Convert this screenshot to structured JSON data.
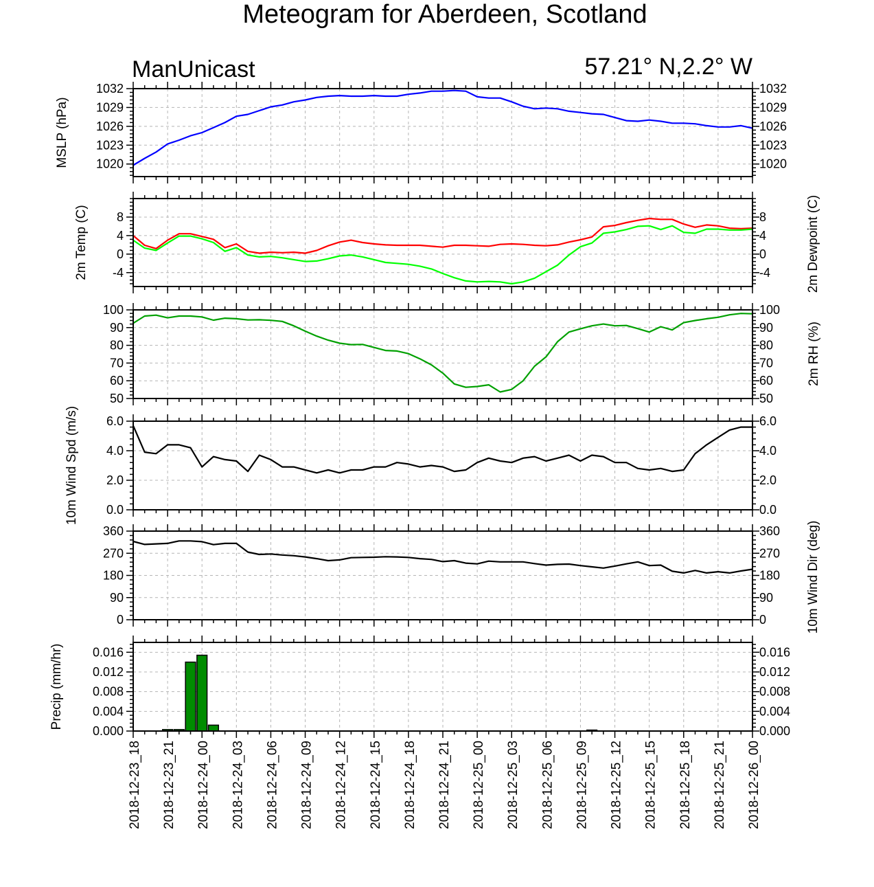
{
  "title": "Meteogram for Aberdeen, Scotland",
  "model_label": "ManUnicast",
  "location_label": "57.21° N,2.2° W",
  "x_tick_labels": [
    "2018-12-23_18",
    "2018-12-23_21",
    "2018-12-24_00",
    "2018-12-24_03",
    "2018-12-24_06",
    "2018-12-24_09",
    "2018-12-24_12",
    "2018-12-24_15",
    "2018-12-24_18",
    "2018-12-24_21",
    "2018-12-25_00",
    "2018-12-25_03",
    "2018-12-25_06",
    "2018-12-25_09",
    "2018-12-25_12",
    "2018-12-25_15",
    "2018-12-25_18",
    "2018-12-25_21",
    "2018-12-26_00"
  ],
  "colors": {
    "mslp": "#0000ff",
    "temp": "#ff0000",
    "dewpoint": "#00ff00",
    "rh": "#00a000",
    "wind": "#000000",
    "precip_fill": "#008c00",
    "grid": "#b4b4b4"
  },
  "chart_data": [
    {
      "type": "line",
      "x_unit": "hours since 2018-12-23_18",
      "ylabel": "MSLP (hPa)",
      "right_labels": true,
      "ylim": [
        1018,
        1032
      ],
      "yticks": [
        1020,
        1023,
        1026,
        1029,
        1032
      ],
      "series": [
        {
          "color_key": "mslp",
          "x": [
            0,
            1,
            2,
            3,
            4,
            5,
            6,
            7,
            8,
            9,
            10,
            11,
            12,
            13,
            14,
            15,
            16,
            17,
            18,
            19,
            20,
            21,
            22,
            23,
            24,
            25,
            26,
            27,
            28,
            29,
            30,
            31,
            32,
            33,
            34,
            35,
            36,
            37,
            38,
            39,
            40,
            41,
            42,
            43,
            44,
            45,
            46,
            47,
            48,
            49,
            50,
            51,
            52,
            53,
            54
          ],
          "values": [
            1019.8,
            1020.9,
            1021.9,
            1023.2,
            1023.8,
            1024.5,
            1025.0,
            1025.8,
            1026.6,
            1027.6,
            1027.9,
            1028.5,
            1029.1,
            1029.4,
            1029.9,
            1030.2,
            1030.6,
            1030.8,
            1030.9,
            1030.8,
            1030.8,
            1030.9,
            1030.8,
            1030.8,
            1031.1,
            1031.3,
            1031.6,
            1031.6,
            1031.7,
            1031.6,
            1030.7,
            1030.5,
            1030.5,
            1029.9,
            1029.2,
            1028.8,
            1028.9,
            1028.8,
            1028.4,
            1028.2,
            1028.0,
            1027.9,
            1027.4,
            1026.9,
            1026.8,
            1027.0,
            1026.8,
            1026.5,
            1026.5,
            1026.4,
            1026.1,
            1025.9,
            1025.9,
            1026.1,
            1025.7
          ]
        }
      ]
    },
    {
      "type": "line",
      "x_unit": "hours since 2018-12-23_18",
      "ylabel": "2m Temp (C)",
      "ylabel_right": "2m Dewpoint (C)",
      "right_labels": false,
      "ylim": [
        -7,
        12
      ],
      "yticks": [
        -4,
        0,
        4,
        8
      ],
      "series": [
        {
          "color_key": "temp",
          "x": [
            0,
            1,
            2,
            3,
            4,
            5,
            6,
            7,
            8,
            9,
            10,
            11,
            12,
            13,
            14,
            15,
            16,
            17,
            18,
            19,
            20,
            21,
            22,
            23,
            24,
            25,
            26,
            27,
            28,
            29,
            30,
            31,
            32,
            33,
            34,
            35,
            36,
            37,
            38,
            39,
            40,
            41,
            42,
            43,
            44,
            45,
            46,
            47,
            48,
            49,
            50,
            51,
            52,
            53,
            54
          ],
          "values": [
            4.0,
            1.9,
            1.2,
            3.0,
            4.4,
            4.4,
            3.8,
            3.2,
            1.4,
            2.2,
            0.6,
            0.2,
            0.4,
            0.3,
            0.4,
            0.2,
            0.8,
            1.8,
            2.6,
            3.0,
            2.5,
            2.2,
            2.0,
            1.9,
            1.9,
            1.9,
            1.7,
            1.5,
            1.9,
            1.9,
            1.8,
            1.7,
            2.1,
            2.2,
            2.1,
            1.9,
            1.8,
            2.0,
            2.6,
            3.1,
            3.7,
            5.9,
            6.2,
            6.8,
            7.3,
            7.7,
            7.5,
            7.5,
            6.5,
            5.8,
            6.3,
            6.1,
            5.6,
            5.5,
            5.6
          ]
        },
        {
          "color_key": "dewpoint",
          "x": [
            0,
            1,
            2,
            3,
            4,
            5,
            6,
            7,
            8,
            9,
            10,
            11,
            12,
            13,
            14,
            15,
            16,
            17,
            18,
            19,
            20,
            21,
            22,
            23,
            24,
            25,
            26,
            27,
            28,
            29,
            30,
            31,
            32,
            33,
            34,
            35,
            36,
            37,
            38,
            39,
            40,
            41,
            42,
            43,
            44,
            45,
            46,
            47,
            48,
            49,
            50,
            51,
            52,
            53,
            54
          ],
          "values": [
            3.0,
            1.3,
            0.8,
            2.4,
            3.9,
            3.9,
            3.3,
            2.5,
            0.6,
            1.4,
            -0.2,
            -0.6,
            -0.5,
            -0.8,
            -1.2,
            -1.6,
            -1.5,
            -1.0,
            -0.4,
            -0.2,
            -0.6,
            -1.2,
            -1.8,
            -2.0,
            -2.2,
            -2.6,
            -3.2,
            -4.2,
            -5.1,
            -5.8,
            -6.0,
            -5.9,
            -6.0,
            -6.4,
            -6.0,
            -5.2,
            -3.8,
            -2.4,
            -0.2,
            1.6,
            2.4,
            4.5,
            4.8,
            5.3,
            6.0,
            6.1,
            5.3,
            6.1,
            4.7,
            4.5,
            5.4,
            5.4,
            5.2,
            5.2,
            5.4
          ]
        }
      ]
    },
    {
      "type": "line",
      "x_unit": "hours since 2018-12-23_18",
      "ylabel": "2m RH (%)",
      "right_labels": true,
      "ylim": [
        50,
        100
      ],
      "yticks": [
        50,
        60,
        70,
        80,
        90,
        100
      ],
      "series": [
        {
          "color_key": "rh",
          "x": [
            0,
            1,
            2,
            3,
            4,
            5,
            6,
            7,
            8,
            9,
            10,
            11,
            12,
            13,
            14,
            15,
            16,
            17,
            18,
            19,
            20,
            21,
            22,
            23,
            24,
            25,
            26,
            27,
            28,
            29,
            30,
            31,
            32,
            33,
            34,
            35,
            36,
            37,
            38,
            39,
            40,
            41,
            42,
            43,
            44,
            45,
            46,
            47,
            48,
            49,
            50,
            51,
            52,
            53,
            54
          ],
          "values": [
            92.5,
            96.5,
            97.0,
            95.5,
            96.5,
            96.5,
            96.0,
            94.2,
            95.3,
            95.0,
            94.3,
            94.4,
            94.1,
            93.5,
            91.0,
            88.0,
            85.2,
            82.9,
            81.2,
            80.4,
            80.5,
            78.8,
            77.1,
            76.8,
            75.3,
            72.4,
            69.0,
            64.3,
            58.2,
            56.3,
            56.8,
            57.7,
            53.7,
            55.1,
            60.0,
            68.2,
            73.5,
            82.0,
            87.5,
            89.3,
            91.0,
            92.0,
            91.0,
            91.2,
            89.4,
            87.5,
            90.5,
            88.7,
            92.8,
            94.0,
            95.0,
            95.8,
            97.2,
            98.0,
            97.8
          ]
        }
      ]
    },
    {
      "type": "line",
      "x_unit": "hours since 2018-12-23_18",
      "ylabel": "10m Wind Spd (m/s)",
      "right_labels": true,
      "ylim": [
        0,
        6
      ],
      "yticks": [
        0,
        2,
        4,
        6
      ],
      "tick_decimals": 1,
      "series": [
        {
          "color_key": "wind",
          "x": [
            0,
            1,
            2,
            3,
            4,
            5,
            6,
            7,
            8,
            9,
            10,
            11,
            12,
            13,
            14,
            15,
            16,
            17,
            18,
            19,
            20,
            21,
            22,
            23,
            24,
            25,
            26,
            27,
            28,
            29,
            30,
            31,
            32,
            33,
            34,
            35,
            36,
            37,
            38,
            39,
            40,
            41,
            42,
            43,
            44,
            45,
            46,
            47,
            48,
            49,
            50,
            51,
            52,
            53,
            54
          ],
          "values": [
            5.7,
            3.9,
            3.8,
            4.4,
            4.4,
            4.2,
            2.9,
            3.6,
            3.4,
            3.3,
            2.6,
            3.7,
            3.4,
            2.9,
            2.9,
            2.7,
            2.5,
            2.7,
            2.5,
            2.7,
            2.7,
            2.9,
            2.9,
            3.2,
            3.1,
            2.9,
            3.0,
            2.9,
            2.6,
            2.7,
            3.2,
            3.5,
            3.3,
            3.2,
            3.5,
            3.6,
            3.3,
            3.5,
            3.7,
            3.3,
            3.7,
            3.6,
            3.2,
            3.2,
            2.8,
            2.7,
            2.8,
            2.6,
            2.7,
            3.8,
            4.4,
            4.9,
            5.4,
            5.6,
            5.6
          ]
        }
      ]
    },
    {
      "type": "line",
      "x_unit": "hours since 2018-12-23_18",
      "ylabel": "10m Wind Dir (deg)",
      "right_labels": true,
      "ylim": [
        0,
        360
      ],
      "yticks": [
        0,
        90,
        180,
        270,
        360
      ],
      "series": [
        {
          "color_key": "wind",
          "x": [
            0,
            1,
            2,
            3,
            4,
            5,
            6,
            7,
            8,
            9,
            10,
            11,
            12,
            13,
            14,
            15,
            16,
            17,
            18,
            19,
            20,
            21,
            22,
            23,
            24,
            25,
            26,
            27,
            28,
            29,
            30,
            31,
            32,
            33,
            34,
            35,
            36,
            37,
            38,
            39,
            40,
            41,
            42,
            43,
            44,
            45,
            46,
            47,
            48,
            49,
            50,
            51,
            52,
            53,
            54
          ],
          "values": [
            318,
            306,
            308,
            310,
            320,
            320,
            317,
            305,
            310,
            310,
            275,
            265,
            267,
            263,
            260,
            255,
            248,
            240,
            243,
            252,
            253,
            254,
            256,
            255,
            253,
            248,
            245,
            236,
            240,
            230,
            227,
            238,
            235,
            235,
            235,
            228,
            222,
            225,
            226,
            220,
            215,
            210,
            218,
            227,
            235,
            220,
            222,
            197,
            190,
            200,
            190,
            195,
            190,
            198,
            205
          ]
        }
      ]
    },
    {
      "type": "bar",
      "x_unit": "hours since 2018-12-23_18",
      "ylabel": "Precip (mm/hr)",
      "right_labels": true,
      "ylim": [
        0,
        0.018
      ],
      "yticks": [
        0,
        0.004,
        0.008,
        0.012,
        0.016
      ],
      "tick_decimals": 3,
      "x": [
        3,
        4,
        5,
        6,
        7,
        40
      ],
      "values": [
        0.0003,
        0.0003,
        0.014,
        0.0154,
        0.0012,
        0.0002
      ]
    }
  ]
}
